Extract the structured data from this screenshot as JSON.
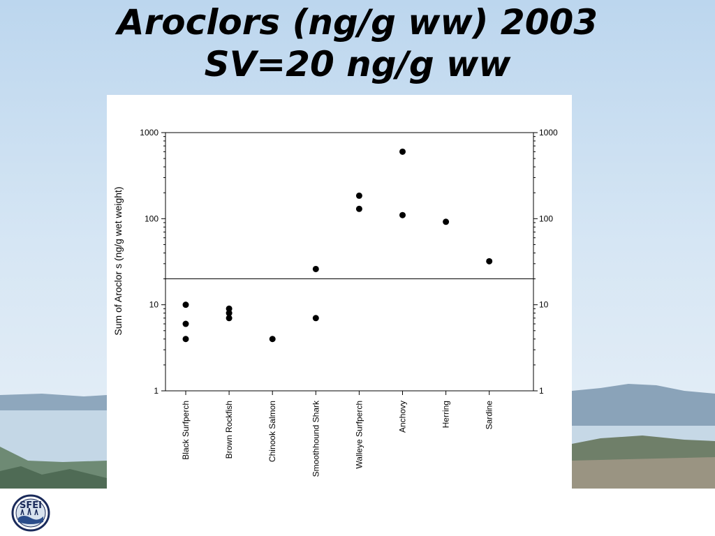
{
  "slide": {
    "title_line1": "Aroclors (ng/g ww) 2003",
    "title_line2": "SV=20 ng/g ww",
    "logo_text": "SFEI"
  },
  "chart_data": {
    "type": "scatter",
    "ylabel": "Sum of Aroclor s (ng/g wet weight)",
    "xlabel": "",
    "yscale": "log",
    "ylim": [
      1,
      1000
    ],
    "yticks": [
      1,
      10,
      100,
      1000
    ],
    "ytick_labels": [
      "1",
      "10",
      "100",
      "1000"
    ],
    "categories": [
      "Black Surfperch",
      "Brown Rockfish",
      "Chinook Salmon",
      "Smoothhound Shark",
      "Walleye Surfperch",
      "Anchovy",
      "Herring",
      "Sardine"
    ],
    "points": [
      {
        "category": "Black Surfperch",
        "y": 10
      },
      {
        "category": "Black Surfperch",
        "y": 6
      },
      {
        "category": "Black Surfperch",
        "y": 4
      },
      {
        "category": "Brown Rockfish",
        "y": 9
      },
      {
        "category": "Brown Rockfish",
        "y": 8
      },
      {
        "category": "Brown Rockfish",
        "y": 7
      },
      {
        "category": "Chinook Salmon",
        "y": 4
      },
      {
        "category": "Smoothhound Shark",
        "y": 26
      },
      {
        "category": "Smoothhound Shark",
        "y": 7
      },
      {
        "category": "Walleye Surfperch",
        "y": 185
      },
      {
        "category": "Walleye Surfperch",
        "y": 130
      },
      {
        "category": "Anchovy",
        "y": 600
      },
      {
        "category": "Anchovy",
        "y": 110
      },
      {
        "category": "Herring",
        "y": 92
      },
      {
        "category": "Sardine",
        "y": 32
      }
    ],
    "reference_line": 20,
    "grid": false,
    "right_axis": true,
    "colors": {
      "marker": "#000000"
    }
  }
}
